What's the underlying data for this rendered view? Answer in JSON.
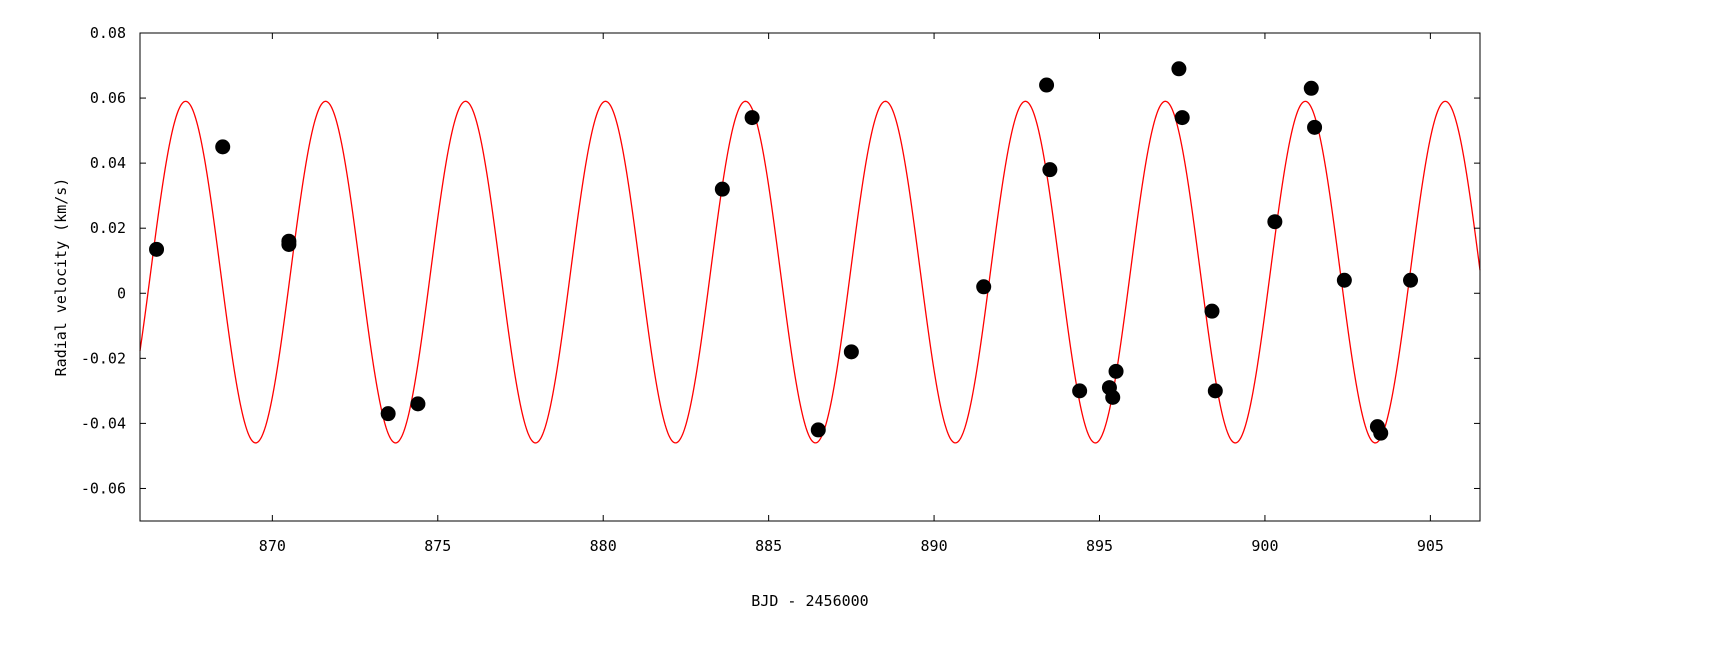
{
  "chart_data": {
    "type": "scatter",
    "title": "",
    "xlabel": "BJD - 2456000",
    "ylabel": "Radial velocity (km/s)",
    "xlim": [
      866,
      906.5
    ],
    "ylim": [
      -0.07,
      0.08
    ],
    "xticks": [
      870,
      875,
      880,
      885,
      890,
      895,
      900,
      905
    ],
    "xtick_labels": [
      "870",
      "875",
      "880",
      "885",
      "890",
      "895",
      "900",
      "905"
    ],
    "yticks": [
      -0.06,
      -0.04,
      -0.02,
      0,
      0.02,
      0.04,
      0.06,
      0.08
    ],
    "ytick_labels": [
      "-0.06",
      "-0.04",
      "-0.02",
      "0",
      "0.02",
      "0.04",
      "0.06",
      "0.08"
    ],
    "grid": false,
    "legend": "none",
    "series": [
      {
        "kind": "points",
        "color": "#000000",
        "points": [
          [
            866.5,
            0.0135
          ],
          [
            868.5,
            0.045
          ],
          [
            870.5,
            0.015
          ],
          [
            870.5,
            0.016
          ],
          [
            873.5,
            -0.037
          ],
          [
            874.4,
            -0.034
          ],
          [
            883.6,
            0.032
          ],
          [
            884.5,
            0.054
          ],
          [
            886.5,
            -0.042
          ],
          [
            887.5,
            -0.018
          ],
          [
            891.5,
            0.002
          ],
          [
            893.4,
            0.064
          ],
          [
            893.5,
            0.038
          ],
          [
            894.4,
            -0.03
          ],
          [
            895.3,
            -0.029
          ],
          [
            895.4,
            -0.032
          ],
          [
            895.5,
            -0.024
          ],
          [
            897.4,
            0.069
          ],
          [
            897.5,
            0.054
          ],
          [
            898.4,
            -0.0055
          ],
          [
            898.5,
            -0.03
          ],
          [
            900.3,
            0.022
          ],
          [
            901.4,
            0.063
          ],
          [
            901.5,
            0.051
          ],
          [
            902.4,
            0.004
          ],
          [
            903.4,
            -0.041
          ],
          [
            903.5,
            -0.043
          ],
          [
            904.4,
            0.004
          ]
        ]
      },
      {
        "kind": "curve",
        "color": "#ff0000",
        "model": {
          "form": "sinusoid",
          "amplitude": 0.0525,
          "offset": 0.0065,
          "period": 4.23,
          "peak_at": 867.38
        },
        "x_range": [
          866,
          906.5
        ]
      }
    ]
  }
}
